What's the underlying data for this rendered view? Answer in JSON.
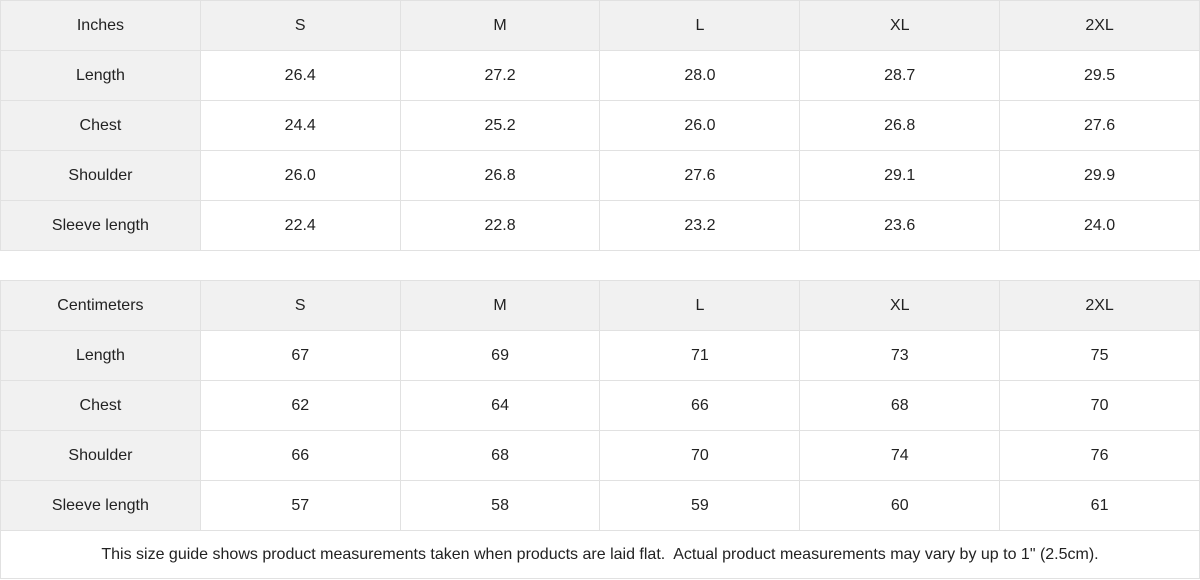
{
  "colors": {
    "header_bg": "#f1f1f1",
    "border": "#e1e1e1",
    "text": "#222222",
    "cell_bg": "#ffffff"
  },
  "tables": [
    {
      "unit_label": "Inches",
      "columns": [
        "S",
        "M",
        "L",
        "XL",
        "2XL"
      ],
      "rows": [
        {
          "label": "Length",
          "values": [
            "26.4",
            "27.2",
            "28.0",
            "28.7",
            "29.5"
          ]
        },
        {
          "label": "Chest",
          "values": [
            "24.4",
            "25.2",
            "26.0",
            "26.8",
            "27.6"
          ]
        },
        {
          "label": "Shoulder",
          "values": [
            "26.0",
            "26.8",
            "27.6",
            "29.1",
            "29.9"
          ]
        },
        {
          "label": "Sleeve length",
          "values": [
            "22.4",
            "22.8",
            "23.2",
            "23.6",
            "24.0"
          ]
        }
      ]
    },
    {
      "unit_label": "Centimeters",
      "columns": [
        "S",
        "M",
        "L",
        "XL",
        "2XL"
      ],
      "rows": [
        {
          "label": "Length",
          "values": [
            "67",
            "69",
            "71",
            "73",
            "75"
          ]
        },
        {
          "label": "Chest",
          "values": [
            "62",
            "64",
            "66",
            "68",
            "70"
          ]
        },
        {
          "label": "Shoulder",
          "values": [
            "66",
            "68",
            "70",
            "74",
            "76"
          ]
        },
        {
          "label": "Sleeve length",
          "values": [
            "57",
            "58",
            "59",
            "60",
            "61"
          ]
        }
      ]
    }
  ],
  "footer": {
    "note": "This size guide shows product measurements taken when products are laid flat.  Actual product measurements may vary by up to 1\" (2.5cm)."
  }
}
